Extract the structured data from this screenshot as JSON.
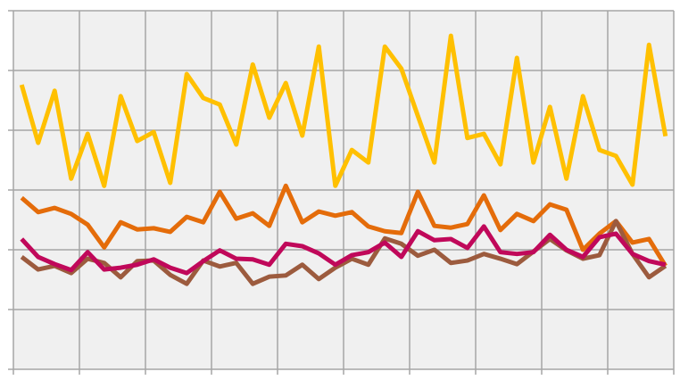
{
  "chart_data": {
    "type": "line",
    "x": [
      0,
      1,
      2,
      3,
      4,
      5,
      6,
      7,
      8,
      9,
      10,
      11,
      12,
      13,
      14,
      15,
      16,
      17,
      18,
      19,
      20,
      21,
      22,
      23,
      24,
      25,
      26,
      27,
      28,
      29,
      30,
      31,
      32,
      33,
      34,
      35,
      36,
      37,
      38,
      39
    ],
    "xlim": [
      -0.5,
      39.5
    ],
    "xticks": [
      -0.5,
      3.5,
      7.5,
      11.5,
      15.5,
      19.5,
      23.5,
      27.5,
      31.5,
      35.5,
      39.5
    ],
    "ylim": [
      0,
      6
    ],
    "yticks": [
      0,
      1,
      2,
      3,
      4,
      5,
      6
    ],
    "grid": true,
    "series": [
      {
        "color": "#FFC000",
        "values": [
          4.76,
          3.79,
          4.66,
          3.19,
          3.94,
          3.07,
          4.57,
          3.82,
          3.97,
          3.12,
          4.94,
          4.54,
          4.43,
          3.76,
          5.1,
          4.21,
          4.79,
          3.91,
          5.4,
          3.07,
          3.67,
          3.46,
          5.4,
          5.03,
          4.24,
          3.46,
          5.58,
          3.87,
          3.94,
          3.43,
          5.21,
          3.46,
          4.39,
          3.19,
          4.57,
          3.67,
          3.57,
          3.09,
          5.43,
          3.9
        ]
      },
      {
        "color": "#E46C0A",
        "values": [
          2.87,
          2.63,
          2.7,
          2.6,
          2.42,
          2.04,
          2.46,
          2.34,
          2.36,
          2.3,
          2.55,
          2.46,
          2.97,
          2.52,
          2.61,
          2.4,
          3.07,
          2.46,
          2.64,
          2.57,
          2.63,
          2.39,
          2.31,
          2.28,
          2.97,
          2.4,
          2.37,
          2.43,
          2.91,
          2.33,
          2.6,
          2.48,
          2.76,
          2.67,
          2.0,
          2.27,
          2.48,
          2.12,
          2.18,
          1.73
        ]
      },
      {
        "color": "#9C5B3E",
        "values": [
          1.88,
          1.67,
          1.73,
          1.61,
          1.85,
          1.78,
          1.54,
          1.81,
          1.82,
          1.58,
          1.43,
          1.82,
          1.72,
          1.78,
          1.43,
          1.55,
          1.57,
          1.75,
          1.51,
          1.7,
          1.85,
          1.75,
          2.19,
          2.1,
          1.9,
          2.0,
          1.78,
          1.82,
          1.93,
          1.85,
          1.76,
          1.97,
          2.18,
          1.99,
          1.85,
          1.91,
          2.48,
          1.93,
          1.54,
          1.73
        ]
      },
      {
        "color": "#C0085A",
        "values": [
          2.18,
          1.88,
          1.76,
          1.66,
          1.96,
          1.67,
          1.7,
          1.75,
          1.84,
          1.7,
          1.61,
          1.81,
          1.99,
          1.85,
          1.84,
          1.75,
          2.1,
          2.06,
          1.94,
          1.75,
          1.91,
          1.96,
          2.12,
          1.88,
          2.31,
          2.16,
          2.18,
          2.03,
          2.39,
          1.96,
          1.93,
          1.96,
          2.25,
          2.0,
          1.88,
          2.21,
          2.27,
          1.93,
          1.81,
          1.75
        ]
      }
    ]
  }
}
